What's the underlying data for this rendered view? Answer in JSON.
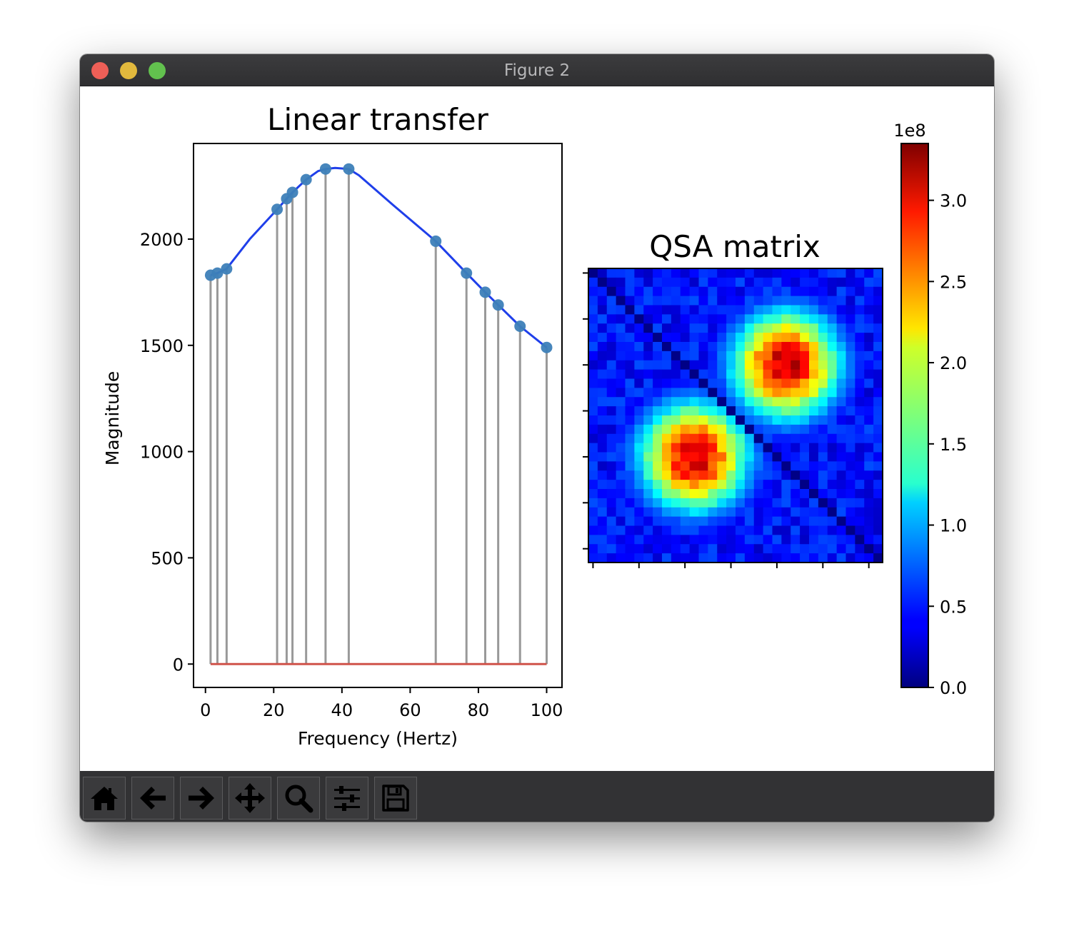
{
  "window": {
    "title": "Figure 2"
  },
  "toolbar": {
    "buttons": [
      {
        "name": "home",
        "icon": "home-icon"
      },
      {
        "name": "back",
        "icon": "arrow-left-icon"
      },
      {
        "name": "forward",
        "icon": "arrow-right-icon"
      },
      {
        "name": "pan",
        "icon": "move-arrows-icon"
      },
      {
        "name": "zoom",
        "icon": "magnifier-icon"
      },
      {
        "name": "configure-subplots",
        "icon": "sliders-icon"
      },
      {
        "name": "save",
        "icon": "floppy-disk-icon"
      }
    ]
  },
  "chart_data": [
    {
      "type": "stem+line",
      "title": "Linear transfer",
      "xlabel": "Frequency (Hertz)",
      "ylabel": "Magnitude",
      "xlim": [
        -3.5,
        104.5
      ],
      "ylim": [
        -110,
        2450
      ],
      "xticks": [
        0,
        20,
        40,
        60,
        80,
        100
      ],
      "xtick_labels": [
        "0",
        "20",
        "40",
        "60",
        "80",
        "100"
      ],
      "yticks": [
        0,
        500,
        1000,
        1500,
        2000
      ],
      "ytick_labels": [
        "0",
        "500",
        "1000",
        "1500",
        "2000"
      ],
      "stems": {
        "x": [
          1.5,
          3.5,
          6.2,
          21.0,
          23.8,
          25.5,
          29.5,
          35.2,
          42.0,
          67.5,
          76.5,
          82.0,
          85.8,
          92.2,
          100.0
        ],
        "y": [
          1830,
          1840,
          1860,
          2140,
          2190,
          2220,
          2280,
          2330,
          2330,
          1990,
          1840,
          1750,
          1690,
          1590,
          1490
        ],
        "marker_color": "#3d7fb8",
        "stem_color": "#999999",
        "baseline_color": "#d0534a"
      },
      "line": {
        "x": [
          1.5,
          3.5,
          6.2,
          13.0,
          21.0,
          23.8,
          25.5,
          29.5,
          33.0,
          35.2,
          38.0,
          42.0,
          45.0,
          55.0,
          67.5,
          76.5,
          82.0,
          85.8,
          92.2,
          100.0
        ],
        "y": [
          1830,
          1840,
          1860,
          2000,
          2140,
          2190,
          2220,
          2280,
          2320,
          2330,
          2335,
          2330,
          2300,
          2160,
          1990,
          1840,
          1750,
          1690,
          1590,
          1490
        ],
        "color": "#1f3fea"
      }
    },
    {
      "type": "heatmap",
      "title": "QSA matrix",
      "size": 32,
      "colormap": "jet",
      "value_range": [
        0,
        3.35
      ],
      "value_scale_label": "1e8",
      "colorbar_ticks": [
        0.0,
        0.5,
        1.0,
        1.5,
        2.0,
        2.5,
        3.0
      ],
      "colorbar_tick_labels": [
        "0.0",
        "0.5",
        "1.0",
        "1.5",
        "2.0",
        "2.5",
        "3.0"
      ],
      "diagonal_value": 0.02,
      "background_value": 0.45,
      "clusters": [
        {
          "center_row": 10,
          "center_col": 21,
          "peak_value": 3.2
        },
        {
          "center_row": 20,
          "center_col": 11,
          "peak_value": 3.2
        }
      ]
    }
  ]
}
